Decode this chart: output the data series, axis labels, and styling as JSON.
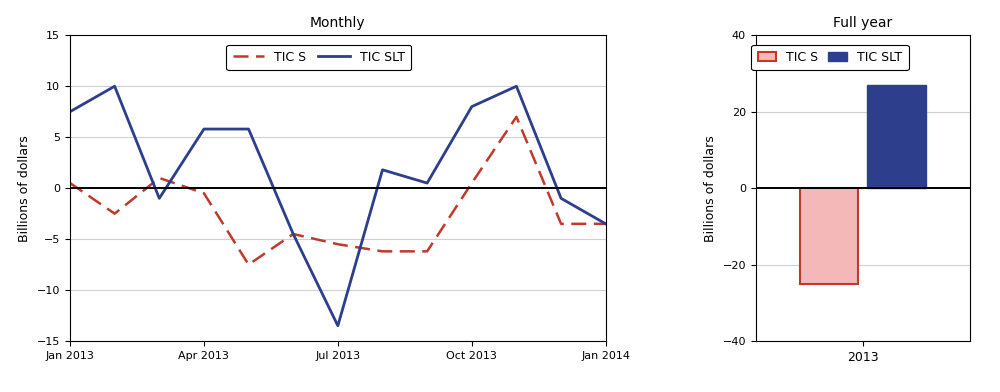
{
  "left_title": "Monthly",
  "right_title": "Full year",
  "ylabel": "Billions of dollars",
  "months": [
    0,
    1,
    2,
    3,
    4,
    5,
    6,
    7,
    8,
    9,
    10,
    11,
    12
  ],
  "tic_s_monthly": [
    0.5,
    -2.5,
    1.0,
    -0.5,
    -7.5,
    -4.5,
    -5.5,
    -6.2,
    -6.2,
    0.5,
    7.0,
    -3.5,
    -3.5
  ],
  "tic_slt_monthly": [
    7.5,
    10.0,
    -1.0,
    5.8,
    5.8,
    -4.5,
    -13.5,
    1.8,
    0.5,
    8.0,
    10.0,
    -1.0,
    -3.5
  ],
  "tics_bar_value": -25.0,
  "ticslt_bar_value": 27.0,
  "bar_categories": [
    "2013"
  ],
  "tic_s_color": "#c0392b",
  "tic_slt_color": "#2c3e8c",
  "tic_s_bar_facecolor": "#f4b8b8",
  "tic_s_bar_edgecolor": "#c0392b",
  "tic_slt_bar_facecolor": "#2c3e8c",
  "tic_slt_bar_edgecolor": "#2c3e8c",
  "left_ylim": [
    -15,
    15
  ],
  "right_ylim": [
    -40,
    40
  ],
  "left_yticks": [
    -15,
    -10,
    -5,
    0,
    5,
    10,
    15
  ],
  "right_yticks": [
    -40,
    -20,
    0,
    20,
    40
  ],
  "x_tick_positions": [
    0,
    3,
    6,
    9,
    12
  ],
  "x_tick_labels": [
    "Jan 2013",
    "Apr 2013",
    "Jul 2013",
    "Oct 2013",
    "Jan 2014"
  ],
  "background_color": "#ffffff",
  "grid_color": "#d0d0d0"
}
